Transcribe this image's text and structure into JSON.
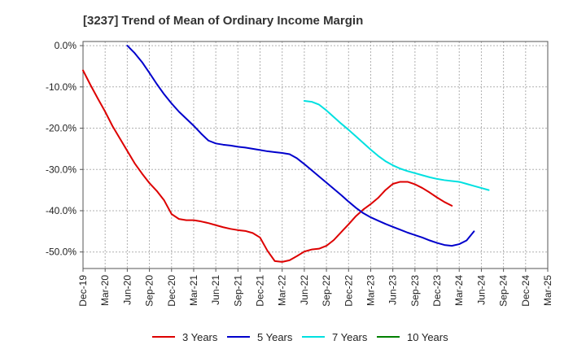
{
  "chart_data": {
    "type": "line",
    "title": "[3237]  Trend of Mean of Ordinary Income Margin",
    "xlabel": "",
    "ylabel": "",
    "ylim": [
      -54,
      1
    ],
    "yticks": [
      0,
      -10,
      -20,
      -30,
      -40,
      -50
    ],
    "ytick_labels": [
      "0.0%",
      "-10.0%",
      "-20.0%",
      "-30.0%",
      "-40.0%",
      "-50.0%"
    ],
    "xtick_labels": [
      "Dec-19",
      "Mar-20",
      "Jun-20",
      "Sep-20",
      "Dec-20",
      "Mar-21",
      "Jun-21",
      "Sep-21",
      "Dec-21",
      "Mar-22",
      "Jun-22",
      "Sep-22",
      "Dec-22",
      "Mar-23",
      "Jun-23",
      "Sep-23",
      "Dec-23",
      "Mar-24",
      "Jun-24",
      "Sep-24",
      "Dec-24",
      "Mar-25"
    ],
    "grid": true,
    "legend_position": "bottom",
    "series": [
      {
        "name": "3 Years",
        "color": "#dd0000",
        "points": [
          [
            "Dec-19",
            -6.0
          ],
          [
            "Jan-20",
            -9.5
          ],
          [
            "Feb-20",
            -12.8
          ],
          [
            "Mar-20",
            -16.0
          ],
          [
            "Apr-20",
            -19.5
          ],
          [
            "May-20",
            -22.5
          ],
          [
            "Jun-20",
            -25.5
          ],
          [
            "Jul-20",
            -28.5
          ],
          [
            "Aug-20",
            -31.0
          ],
          [
            "Sep-20",
            -33.3
          ],
          [
            "Oct-20",
            -35.2
          ],
          [
            "Nov-20",
            -37.5
          ],
          [
            "Dec-20",
            -40.8
          ],
          [
            "Jan-21",
            -42.0
          ],
          [
            "Feb-21",
            -42.3
          ],
          [
            "Mar-21",
            -42.3
          ],
          [
            "Apr-21",
            -42.6
          ],
          [
            "May-21",
            -43.0
          ],
          [
            "Jun-21",
            -43.5
          ],
          [
            "Jul-21",
            -44.0
          ],
          [
            "Aug-21",
            -44.4
          ],
          [
            "Sep-21",
            -44.7
          ],
          [
            "Oct-21",
            -44.9
          ],
          [
            "Nov-21",
            -45.4
          ],
          [
            "Dec-21",
            -46.5
          ],
          [
            "Jan-22",
            -49.7
          ],
          [
            "Feb-22",
            -52.2
          ],
          [
            "Mar-22",
            -52.4
          ],
          [
            "Apr-22",
            -52.0
          ],
          [
            "May-22",
            -51.0
          ],
          [
            "Jun-22",
            -49.9
          ],
          [
            "Jul-22",
            -49.4
          ],
          [
            "Aug-22",
            -49.2
          ],
          [
            "Sep-22",
            -48.5
          ],
          [
            "Oct-22",
            -47.1
          ],
          [
            "Nov-22",
            -45.2
          ],
          [
            "Dec-22",
            -43.3
          ],
          [
            "Jan-23",
            -41.3
          ],
          [
            "Feb-23",
            -39.7
          ],
          [
            "Mar-23",
            -38.4
          ],
          [
            "Apr-23",
            -36.9
          ],
          [
            "May-23",
            -35.0
          ],
          [
            "Jun-23",
            -33.5
          ],
          [
            "Jul-23",
            -33.0
          ],
          [
            "Aug-23",
            -33.0
          ],
          [
            "Sep-23",
            -33.6
          ],
          [
            "Oct-23",
            -34.5
          ],
          [
            "Nov-23",
            -35.6
          ],
          [
            "Dec-23",
            -36.8
          ],
          [
            "Jan-24",
            -37.9
          ],
          [
            "Feb-24",
            -38.8
          ]
        ]
      },
      {
        "name": "5 Years",
        "color": "#0000cc",
        "points": [
          [
            "Jun-20",
            0.0
          ],
          [
            "Jul-20",
            -1.8
          ],
          [
            "Aug-20",
            -4.0
          ],
          [
            "Sep-20",
            -6.6
          ],
          [
            "Oct-20",
            -9.3
          ],
          [
            "Nov-20",
            -11.8
          ],
          [
            "Dec-20",
            -14.0
          ],
          [
            "Jan-21",
            -16.0
          ],
          [
            "Feb-21",
            -17.7
          ],
          [
            "Mar-21",
            -19.4
          ],
          [
            "Apr-21",
            -21.3
          ],
          [
            "May-21",
            -23.0
          ],
          [
            "Jun-21",
            -23.7
          ],
          [
            "Jul-21",
            -24.0
          ],
          [
            "Aug-21",
            -24.2
          ],
          [
            "Sep-21",
            -24.5
          ],
          [
            "Oct-21",
            -24.7
          ],
          [
            "Nov-21",
            -25.0
          ],
          [
            "Dec-21",
            -25.3
          ],
          [
            "Jan-22",
            -25.6
          ],
          [
            "Feb-22",
            -25.8
          ],
          [
            "Mar-22",
            -26.0
          ],
          [
            "Apr-22",
            -26.3
          ],
          [
            "May-22",
            -27.3
          ],
          [
            "Jun-22",
            -28.7
          ],
          [
            "Jul-22",
            -30.2
          ],
          [
            "Aug-22",
            -31.7
          ],
          [
            "Sep-22",
            -33.2
          ],
          [
            "Oct-22",
            -34.7
          ],
          [
            "Nov-22",
            -36.2
          ],
          [
            "Dec-22",
            -37.8
          ],
          [
            "Jan-23",
            -39.3
          ],
          [
            "Feb-23",
            -40.6
          ],
          [
            "Mar-23",
            -41.6
          ],
          [
            "Apr-23",
            -42.4
          ],
          [
            "May-23",
            -43.2
          ],
          [
            "Jun-23",
            -43.9
          ],
          [
            "Jul-23",
            -44.6
          ],
          [
            "Aug-23",
            -45.3
          ],
          [
            "Sep-23",
            -45.9
          ],
          [
            "Oct-23",
            -46.5
          ],
          [
            "Nov-23",
            -47.2
          ],
          [
            "Dec-23",
            -47.8
          ],
          [
            "Jan-24",
            -48.3
          ],
          [
            "Feb-24",
            -48.5
          ],
          [
            "Mar-24",
            -48.1
          ],
          [
            "Apr-24",
            -47.2
          ],
          [
            "May-24",
            -45.0
          ]
        ]
      },
      {
        "name": "7 Years",
        "color": "#00e0e0",
        "points": [
          [
            "Jun-22",
            -13.4
          ],
          [
            "Jul-22",
            -13.6
          ],
          [
            "Aug-22",
            -14.3
          ],
          [
            "Sep-22",
            -15.7
          ],
          [
            "Oct-22",
            -17.3
          ],
          [
            "Nov-22",
            -18.9
          ],
          [
            "Dec-22",
            -20.4
          ],
          [
            "Jan-23",
            -22.0
          ],
          [
            "Feb-23",
            -23.6
          ],
          [
            "Mar-23",
            -25.2
          ],
          [
            "Apr-23",
            -26.7
          ],
          [
            "May-23",
            -28.0
          ],
          [
            "Jun-23",
            -29.0
          ],
          [
            "Jul-23",
            -29.8
          ],
          [
            "Aug-23",
            -30.4
          ],
          [
            "Sep-23",
            -30.9
          ],
          [
            "Oct-23",
            -31.4
          ],
          [
            "Nov-23",
            -31.9
          ],
          [
            "Dec-23",
            -32.3
          ],
          [
            "Jan-24",
            -32.6
          ],
          [
            "Feb-24",
            -32.8
          ],
          [
            "Mar-24",
            -33.0
          ],
          [
            "Apr-24",
            -33.5
          ],
          [
            "May-24",
            -34.0
          ],
          [
            "Jun-24",
            -34.5
          ],
          [
            "Jul-24",
            -35.0
          ]
        ]
      },
      {
        "name": "10 Years",
        "color": "#008000",
        "points": []
      }
    ]
  }
}
